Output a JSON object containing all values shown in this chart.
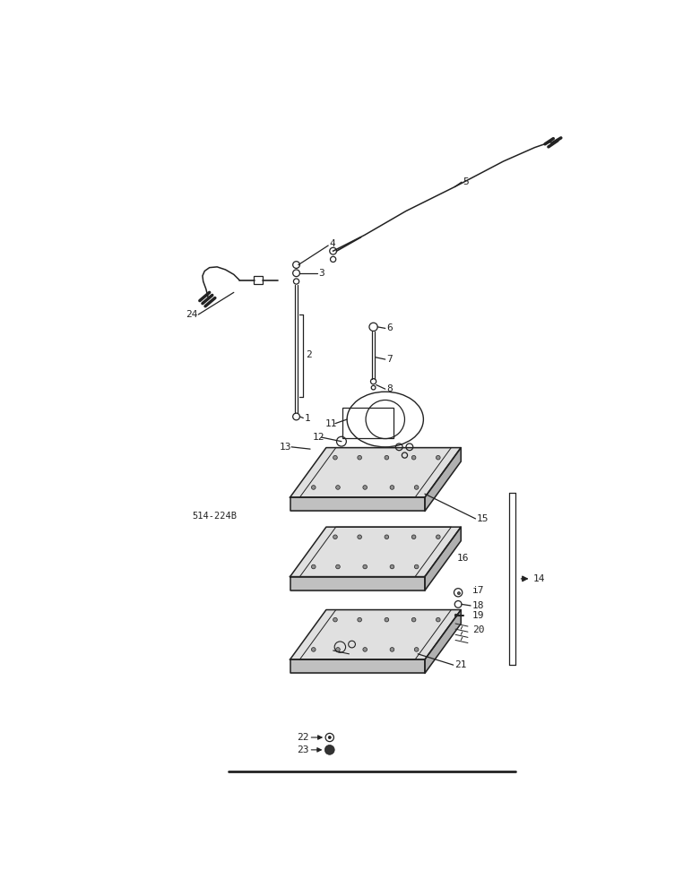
{
  "bg_color": "#ffffff",
  "lc": "#222222",
  "watermark": "514-224B",
  "fig_width": 7.72,
  "fig_height": 10.0
}
